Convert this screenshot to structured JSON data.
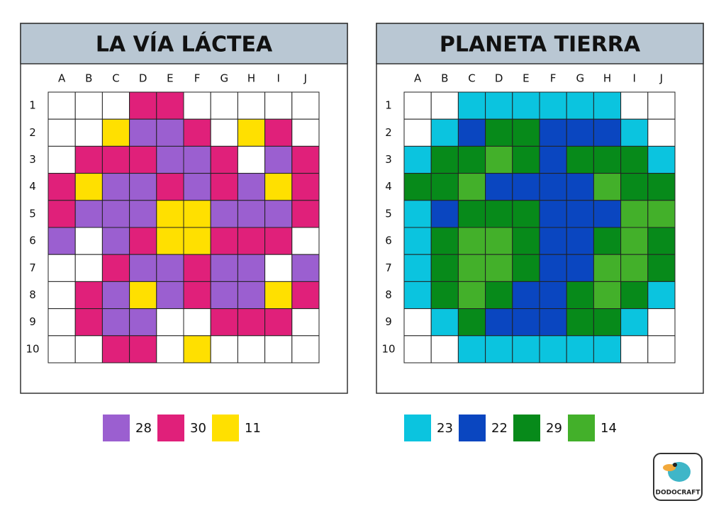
{
  "panels": [
    {
      "title": "LA VÍA LÁCTEA",
      "columns": [
        "A",
        "B",
        "C",
        "D",
        "E",
        "F",
        "G",
        "H",
        "I",
        "J"
      ],
      "rows": [
        "1",
        "2",
        "3",
        "4",
        "5",
        "6",
        "7",
        "8",
        "9",
        "10"
      ],
      "grid": [
        [
          "#fff",
          "#fff",
          "#fff",
          "#e0207a",
          "#e0207a",
          "#fff",
          "#fff",
          "#fff",
          "#fff",
          "#fff"
        ],
        [
          "#fff",
          "#fff",
          "#ffe000",
          "#9b5fd0",
          "#9b5fd0",
          "#e0207a",
          "#fff",
          "#ffe000",
          "#e0207a",
          "#fff"
        ],
        [
          "#fff",
          "#e0207a",
          "#e0207a",
          "#e0207a",
          "#9b5fd0",
          "#9b5fd0",
          "#e0207a",
          "#fff",
          "#9b5fd0",
          "#e0207a"
        ],
        [
          "#e0207a",
          "#ffe000",
          "#9b5fd0",
          "#9b5fd0",
          "#e0207a",
          "#9b5fd0",
          "#e0207a",
          "#9b5fd0",
          "#ffe000",
          "#e0207a"
        ],
        [
          "#e0207a",
          "#9b5fd0",
          "#9b5fd0",
          "#9b5fd0",
          "#ffe000",
          "#ffe000",
          "#9b5fd0",
          "#9b5fd0",
          "#9b5fd0",
          "#e0207a"
        ],
        [
          "#9b5fd0",
          "#fff",
          "#9b5fd0",
          "#e0207a",
          "#ffe000",
          "#ffe000",
          "#e0207a",
          "#e0207a",
          "#e0207a",
          "#fff"
        ],
        [
          "#fff",
          "#fff",
          "#e0207a",
          "#9b5fd0",
          "#9b5fd0",
          "#e0207a",
          "#9b5fd0",
          "#9b5fd0",
          "#fff",
          "#9b5fd0"
        ],
        [
          "#fff",
          "#e0207a",
          "#9b5fd0",
          "#ffe000",
          "#9b5fd0",
          "#e0207a",
          "#9b5fd0",
          "#9b5fd0",
          "#ffe000",
          "#e0207a"
        ],
        [
          "#fff",
          "#e0207a",
          "#9b5fd0",
          "#9b5fd0",
          "#fff",
          "#fff",
          "#e0207a",
          "#e0207a",
          "#e0207a",
          "#fff"
        ],
        [
          "#fff",
          "#fff",
          "#e0207a",
          "#e0207a",
          "#fff",
          "#ffe000",
          "#fff",
          "#fff",
          "#fff",
          "#fff"
        ]
      ],
      "legend": [
        {
          "color": "#9b5fd0",
          "count": 28
        },
        {
          "color": "#e0207a",
          "count": 30
        },
        {
          "color": "#ffe000",
          "count": 11
        }
      ]
    },
    {
      "title": "PLANETA TIERRA",
      "columns": [
        "A",
        "B",
        "C",
        "D",
        "E",
        "F",
        "G",
        "H",
        "I",
        "J"
      ],
      "rows": [
        "1",
        "2",
        "3",
        "4",
        "5",
        "6",
        "7",
        "8",
        "9",
        "10"
      ],
      "grid": [
        [
          "#fff",
          "#fff",
          "#0bc4df",
          "#0bc4df",
          "#0bc4df",
          "#0bc4df",
          "#0bc4df",
          "#0bc4df",
          "#fff",
          "#fff"
        ],
        [
          "#fff",
          "#0bc4df",
          "#0a46c0",
          "#078a1a",
          "#078a1a",
          "#0a46c0",
          "#0a46c0",
          "#0a46c0",
          "#0bc4df",
          "#fff"
        ],
        [
          "#0bc4df",
          "#078a1a",
          "#078a1a",
          "#43b02a",
          "#078a1a",
          "#0a46c0",
          "#078a1a",
          "#078a1a",
          "#078a1a",
          "#0bc4df"
        ],
        [
          "#078a1a",
          "#078a1a",
          "#43b02a",
          "#0a46c0",
          "#0a46c0",
          "#0a46c0",
          "#0a46c0",
          "#43b02a",
          "#078a1a",
          "#078a1a"
        ],
        [
          "#0bc4df",
          "#0a46c0",
          "#078a1a",
          "#078a1a",
          "#078a1a",
          "#0a46c0",
          "#0a46c0",
          "#0a46c0",
          "#43b02a",
          "#43b02a"
        ],
        [
          "#0bc4df",
          "#078a1a",
          "#43b02a",
          "#43b02a",
          "#078a1a",
          "#0a46c0",
          "#0a46c0",
          "#078a1a",
          "#43b02a",
          "#078a1a"
        ],
        [
          "#0bc4df",
          "#078a1a",
          "#43b02a",
          "#43b02a",
          "#078a1a",
          "#0a46c0",
          "#0a46c0",
          "#43b02a",
          "#43b02a",
          "#078a1a"
        ],
        [
          "#0bc4df",
          "#078a1a",
          "#43b02a",
          "#078a1a",
          "#0a46c0",
          "#0a46c0",
          "#078a1a",
          "#43b02a",
          "#078a1a",
          "#0bc4df"
        ],
        [
          "#fff",
          "#0bc4df",
          "#078a1a",
          "#0a46c0",
          "#0a46c0",
          "#0a46c0",
          "#078a1a",
          "#078a1a",
          "#0bc4df",
          "#fff"
        ],
        [
          "#fff",
          "#fff",
          "#0bc4df",
          "#0bc4df",
          "#0bc4df",
          "#0bc4df",
          "#0bc4df",
          "#0bc4df",
          "#fff",
          "#fff"
        ]
      ],
      "legend": [
        {
          "color": "#0bc4df",
          "count": 23
        },
        {
          "color": "#0a46c0",
          "count": 22
        },
        {
          "color": "#078a1a",
          "count": 29
        },
        {
          "color": "#43b02a",
          "count": 14
        }
      ]
    }
  ],
  "logo": {
    "text": "DODOCRAFT"
  }
}
